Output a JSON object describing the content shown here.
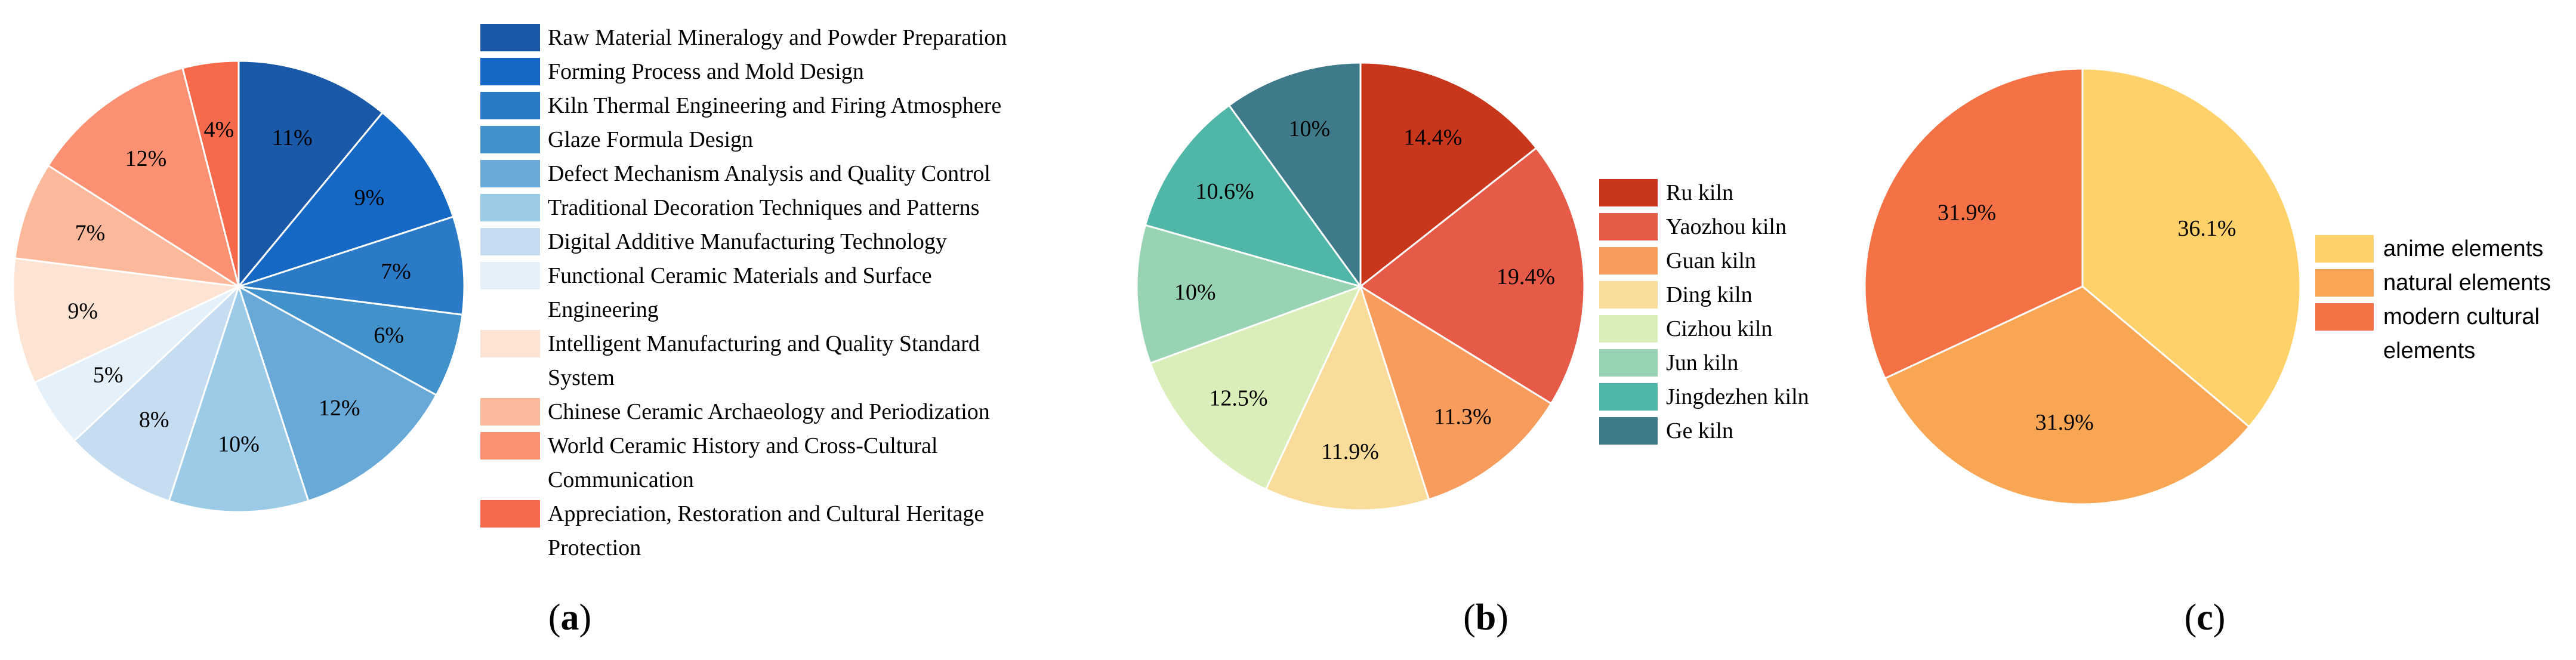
{
  "chart_data": [
    {
      "type": "pie",
      "caption": "a",
      "categories": [
        "Raw Material Mineralogy and Powder Preparation",
        "Forming Process and Mold Design",
        "Kiln Thermal Engineering and Firing Atmosphere",
        "Glaze Formula Design",
        "Defect Mechanism Analysis and Quality Control",
        "Traditional Decoration Techniques and Patterns",
        "Digital Additive Manufacturing Technology",
        "Functional Ceramic Materials and Surface Engineering",
        "Intelligent Manufacturing and Quality Standard System",
        "Chinese Ceramic Archaeology and Periodization",
        "World Ceramic History and Cross-Cultural Communication",
        "Appreciation, Restoration and Cultural Heritage Protection"
      ],
      "legend_lines": [
        [
          "Raw Material Mineralogy and Powder Preparation"
        ],
        [
          "Forming Process and Mold Design"
        ],
        [
          "Kiln Thermal Engineering and Firing Atmosphere"
        ],
        [
          "Glaze Formula Design"
        ],
        [
          "Defect Mechanism Analysis and Quality Control"
        ],
        [
          "Traditional Decoration Techniques and Patterns"
        ],
        [
          "Digital Additive Manufacturing Technology"
        ],
        [
          "Functional Ceramic Materials and Surface",
          "Engineering"
        ],
        [
          "Intelligent Manufacturing and Quality Standard",
          "System"
        ],
        [
          "Chinese Ceramic Archaeology and Periodization"
        ],
        [
          "World Ceramic History and Cross-Cultural",
          "Communication"
        ],
        [
          "Appreciation, Restoration and Cultural Heritage",
          "Protection"
        ]
      ],
      "values": [
        11,
        9,
        7,
        6,
        12,
        10,
        8,
        5,
        9,
        7,
        12,
        4
      ],
      "labels": [
        "11%",
        "9%",
        "7%",
        "6%",
        "12%",
        "10%",
        "8%",
        "5%",
        "9%",
        "7%",
        "12%",
        "4%"
      ],
      "colors": [
        "#1a58a8",
        "#1569c4",
        "#2a7ac8",
        "#4191cb",
        "#68a9d8",
        "#9ccbe8",
        "#c6dcf0",
        "#e4f0fa",
        "#fde3d3",
        "#fcb89a",
        "#fb9072",
        "#f6694b"
      ],
      "legend_position": "right"
    },
    {
      "type": "pie",
      "caption": "b",
      "categories": [
        "Ru kiln",
        "Yaozhou kiln",
        "Guan kiln",
        "Ding kiln",
        "Cizhou kiln",
        "Jun kiln",
        "Jingdezhen kiln",
        "Ge kiln"
      ],
      "values": [
        14.4,
        19.4,
        11.3,
        11.9,
        12.5,
        10,
        10.6,
        10
      ],
      "labels": [
        "14.4%",
        "19.4%",
        "11.3%",
        "11.9%",
        "12.5%",
        "10%",
        "10.6%",
        "10%"
      ],
      "colors": [
        "#c8361b",
        "#e65b48",
        "#f79c5c",
        "#f9dc99",
        "#d9eeb8",
        "#98d4b3",
        "#50b6a8",
        "#3f7a8a"
      ],
      "legend_position": "right"
    },
    {
      "type": "pie",
      "caption": "c",
      "categories": [
        "anime elements",
        "natural elements",
        "modern cultural elements"
      ],
      "legend_lines": [
        [
          "anime elements"
        ],
        [
          "natural elements"
        ],
        [
          "modern cultural",
          "elements"
        ]
      ],
      "values": [
        36.1,
        31.9,
        31.9
      ],
      "labels": [
        "36.1%",
        "31.9%",
        "31.9%"
      ],
      "colors": [
        "#fed16a",
        "#f9a654",
        "#f47045"
      ],
      "legend_position": "right"
    }
  ]
}
